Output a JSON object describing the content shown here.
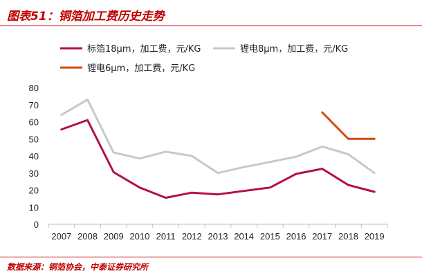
{
  "header": {
    "title": "图表51：铜箔加工费历史走势"
  },
  "footer": {
    "source": "数据来源：铜箔协会，中泰证券研究所"
  },
  "colors": {
    "accent": "#c00000"
  },
  "chart_data": {
    "type": "line",
    "title": "图表51：铜箔加工费历史走势",
    "xlabel": "",
    "ylabel": "",
    "x": [
      "2007",
      "2008",
      "2009",
      "2010",
      "2011",
      "2012",
      "2013",
      "2014",
      "2015",
      "2016",
      "2017",
      "2018",
      "2019"
    ],
    "ylim": [
      0,
      80
    ],
    "yticks": [
      0,
      10,
      20,
      30,
      40,
      50,
      60,
      70,
      80
    ],
    "grid": false,
    "legend_position": "top",
    "series": [
      {
        "name": "标箔18μm，加工费，元/KG",
        "color": "#b5103c",
        "values": [
          55.5,
          61,
          30.5,
          21.5,
          15.5,
          18.5,
          17.5,
          19.5,
          21.5,
          29.5,
          32.5,
          23,
          19
        ]
      },
      {
        "name": "锂电8μm，加工费，元/KG",
        "color": "#c8c8c8",
        "values": [
          64,
          73,
          42,
          38.5,
          42.5,
          40,
          30,
          33.5,
          36.5,
          39.5,
          45.5,
          41,
          30
        ]
      },
      {
        "name": "锂电6μm，加工费，元/KG",
        "color": "#d24a10",
        "values": [
          null,
          null,
          null,
          null,
          null,
          null,
          null,
          null,
          null,
          null,
          65.5,
          50,
          50
        ]
      }
    ]
  }
}
